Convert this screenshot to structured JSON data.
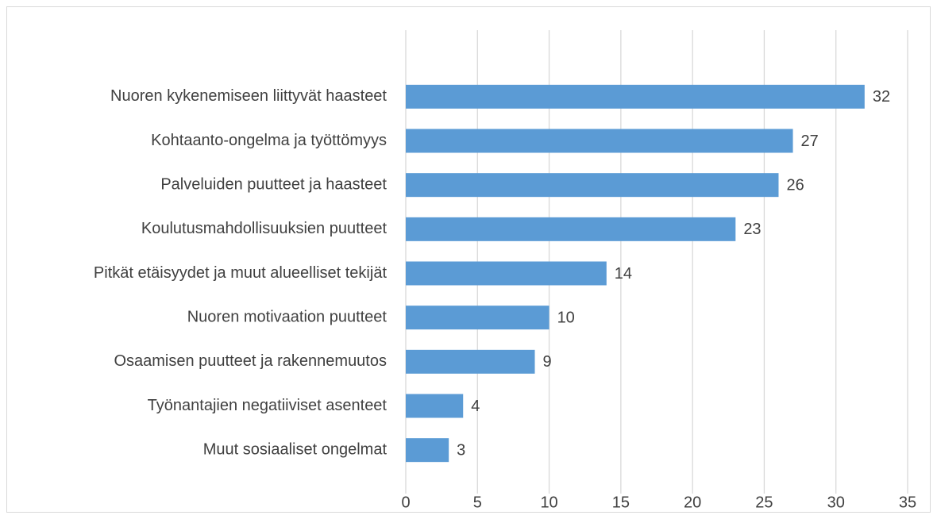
{
  "chart_data": {
    "type": "bar",
    "orientation": "horizontal",
    "categories": [
      "Nuoren kykenemiseen liittyvät haasteet",
      "Kohtaanto-ongelma ja työttömyys",
      "Palveluiden puutteet ja haasteet",
      "Koulutusmahdollisuuksien puutteet",
      "Pitkät etäisyydet ja muut alueelliset tekijät",
      "Nuoren motivaation puutteet",
      "Osaamisen puutteet ja rakennemuutos",
      "Työnantajien negatiiviset asenteet",
      "Muut sosiaaliset ongelmat"
    ],
    "values": [
      32,
      27,
      26,
      23,
      14,
      10,
      9,
      4,
      3
    ],
    "color": "#5b9bd5",
    "xlim": [
      0,
      35
    ],
    "xticks": [
      0,
      5,
      10,
      15,
      20,
      25,
      30,
      35
    ],
    "grid": true
  }
}
